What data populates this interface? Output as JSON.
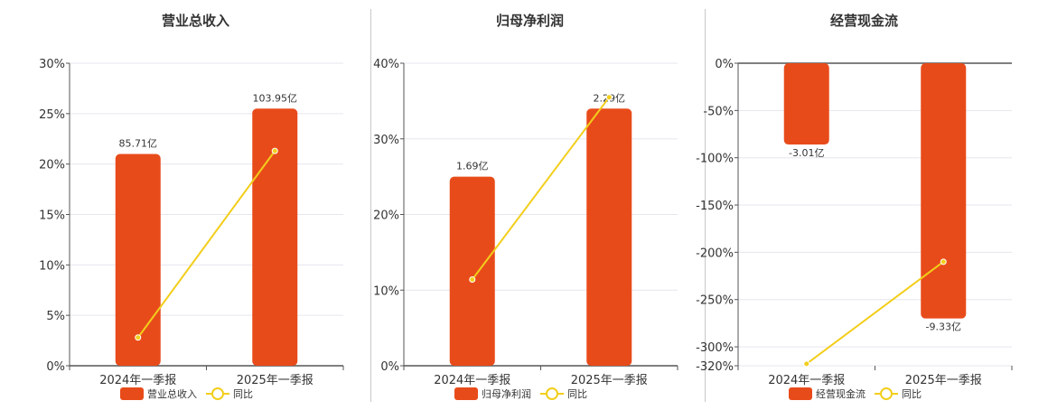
{
  "colors": {
    "bar": "#E84B1A",
    "line": "#F2CE1B",
    "grid": "#e6e6ef",
    "axis": "#555555"
  },
  "legend": {
    "bar_icon": "bar-swatch",
    "line_icon": "line-marker-circle"
  },
  "chart_data": [
    {
      "type": "bar",
      "title": "营业总收入",
      "categories": [
        "2024年一季报",
        "2025年一季报"
      ],
      "yticks": [
        "30%",
        "25%",
        "20%",
        "15%",
        "10%",
        "5%",
        "0%"
      ],
      "ytick_values": [
        30,
        25,
        20,
        15,
        10,
        5,
        0
      ],
      "ylim": [
        0,
        30
      ],
      "grid": true,
      "legend_position": "bottom",
      "series": [
        {
          "name": "营业总收入",
          "kind": "bar",
          "values": [
            21,
            25.5
          ],
          "labels": [
            "85.71亿",
            "103.95亿"
          ]
        },
        {
          "name": "同比",
          "kind": "line",
          "values": [
            2.8,
            21.3
          ]
        }
      ]
    },
    {
      "type": "bar",
      "title": "归母净利润",
      "categories": [
        "2024年一季报",
        "2025年一季报"
      ],
      "yticks": [
        "40%",
        "30%",
        "20%",
        "10%",
        "0%"
      ],
      "ytick_values": [
        40,
        30,
        20,
        10,
        0
      ],
      "ylim": [
        0,
        40
      ],
      "grid": true,
      "legend_position": "bottom",
      "series": [
        {
          "name": "归母净利润",
          "kind": "bar",
          "values": [
            25,
            34
          ],
          "labels": [
            "1.69亿",
            "2.29亿"
          ]
        },
        {
          "name": "同比",
          "kind": "line",
          "values": [
            11.4,
            35.5
          ]
        }
      ]
    },
    {
      "type": "bar",
      "title": "经营现金流",
      "categories": [
        "2024年一季报",
        "2025年一季报"
      ],
      "yticks": [
        "0%",
        "-50%",
        "-100%",
        "-150%",
        "-200%",
        "-250%",
        "-300%",
        "-320%"
      ],
      "ytick_values": [
        0,
        -50,
        -100,
        -150,
        -200,
        -250,
        -300,
        -320
      ],
      "ylim": [
        -320,
        0
      ],
      "grid": true,
      "legend_position": "bottom",
      "series": [
        {
          "name": "经营现金流",
          "kind": "bar",
          "values": [
            -86,
            -270
          ],
          "labels": [
            "-3.01亿",
            "-9.33亿"
          ]
        },
        {
          "name": "同比",
          "kind": "line",
          "values": [
            -318,
            -210
          ]
        }
      ]
    }
  ]
}
